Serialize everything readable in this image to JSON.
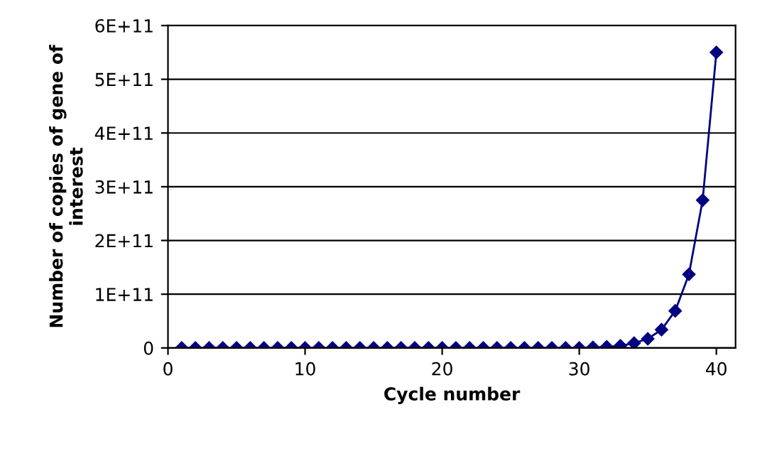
{
  "chart_data": {
    "type": "line",
    "xlabel": "Cycle number",
    "ylabel": "Number of copies of gene of\ninterest",
    "x": [
      1,
      2,
      3,
      4,
      5,
      6,
      7,
      8,
      9,
      10,
      11,
      12,
      13,
      14,
      15,
      16,
      17,
      18,
      19,
      20,
      21,
      22,
      23,
      24,
      25,
      26,
      27,
      28,
      29,
      30,
      31,
      32,
      33,
      34,
      35,
      36,
      37,
      38,
      39,
      40
    ],
    "series": [
      {
        "color": "#000080",
        "values": [
          0,
          0,
          0,
          0,
          0,
          0,
          0,
          0,
          0,
          0,
          0,
          0,
          0,
          0,
          0,
          0,
          0,
          0,
          0,
          0,
          0,
          0,
          0,
          0,
          0,
          0,
          0,
          0,
          0,
          0,
          1000000000.0,
          2000000000.0,
          4000000000.0,
          9000000000.0,
          17000000000.0,
          34000000000.0,
          69000000000.0,
          137000000000.0,
          275000000000.0,
          550000000000.0
        ]
      }
    ],
    "xlim": [
      0,
      41.4
    ],
    "xticks": [
      0,
      10,
      20,
      30,
      40
    ],
    "ylim": [
      0,
      600000000000.0
    ],
    "yticks": [
      {
        "value": 0,
        "label": "0"
      },
      {
        "value": 100000000000.0,
        "label": "1E+11"
      },
      {
        "value": 200000000000.0,
        "label": "2E+11"
      },
      {
        "value": 300000000000.0,
        "label": "3E+11"
      },
      {
        "value": 400000000000.0,
        "label": "4E+11"
      },
      {
        "value": 500000000000.0,
        "label": "5E+11"
      },
      {
        "value": 600000000000.0,
        "label": "6E+11"
      }
    ],
    "grid": "y",
    "legend": false,
    "marker": "diamond",
    "line_style": "solid"
  }
}
